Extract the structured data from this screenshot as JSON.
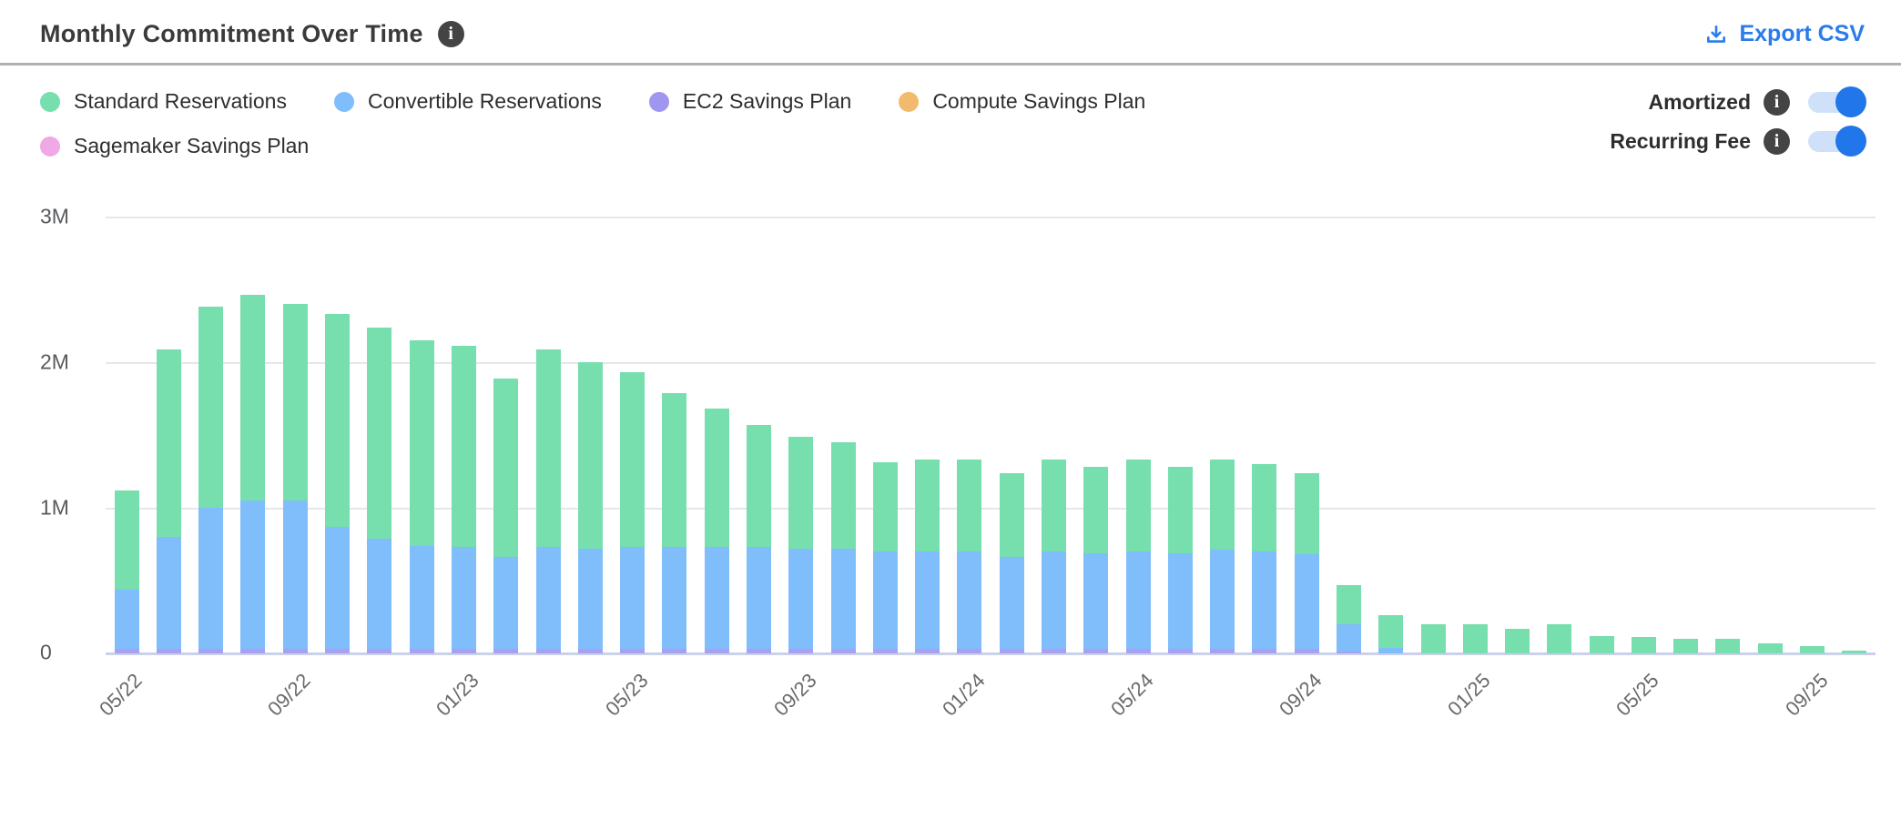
{
  "header": {
    "title": "Monthly Commitment Over Time",
    "title_info_icon": "info-icon",
    "export_label": "Export CSV",
    "export_color": "#2b7cea"
  },
  "legend": {
    "items": [
      {
        "label": "Standard Reservations",
        "color": "#77deae"
      },
      {
        "label": "Convertible Reservations",
        "color": "#7fbefb"
      },
      {
        "label": "EC2 Savings Plan",
        "color": "#a096f0"
      },
      {
        "label": "Compute Savings Plan",
        "color": "#f2ba6c"
      },
      {
        "label": "Sagemaker Savings Plan",
        "color": "#efa9e6"
      }
    ]
  },
  "toggles": [
    {
      "label": "Amortized",
      "state": "on"
    },
    {
      "label": "Recurring Fee",
      "state": "on"
    }
  ],
  "toggle_colors": {
    "track": "#cfe1f9",
    "knob": "#2176e9"
  },
  "chart_data": {
    "type": "bar",
    "stacked": true,
    "value_unit": "millions",
    "ylim": [
      0,
      3000000
    ],
    "grid": true,
    "ytick_labels": [
      "3M",
      "2M",
      "1M",
      "0"
    ],
    "x": [
      "05/22",
      "06/22",
      "07/22",
      "08/22",
      "09/22",
      "10/22",
      "11/22",
      "12/22",
      "01/23",
      "02/23",
      "03/23",
      "04/23",
      "05/23",
      "06/23",
      "07/23",
      "08/23",
      "09/23",
      "10/23",
      "11/23",
      "12/23",
      "01/24",
      "02/24",
      "03/24",
      "04/24",
      "05/24",
      "06/24",
      "07/24",
      "08/24",
      "09/24",
      "10/24",
      "11/24",
      "12/24",
      "01/25",
      "02/25",
      "03/25",
      "04/25",
      "05/25",
      "06/25",
      "07/25",
      "08/25",
      "09/25",
      "10/25"
    ],
    "xtick_every": 4,
    "stack_order_bottom_to_top": [
      4,
      3,
      2,
      1,
      0
    ],
    "series": [
      {
        "name": "Standard Reservations",
        "color": "#77deae",
        "values": [
          0.68,
          1.29,
          1.38,
          1.41,
          1.35,
          1.46,
          1.45,
          1.41,
          1.38,
          1.23,
          1.36,
          1.28,
          1.2,
          1.06,
          0.95,
          0.84,
          0.77,
          0.73,
          0.61,
          0.63,
          0.63,
          0.58,
          0.63,
          0.59,
          0.63,
          0.59,
          0.62,
          0.6,
          0.56,
          0.27,
          0.22,
          0.2,
          0.2,
          0.17,
          0.2,
          0.12,
          0.11,
          0.1,
          0.1,
          0.07,
          0.05,
          0.02
        ]
      },
      {
        "name": "Convertible Reservations",
        "color": "#7fbefb",
        "values": [
          0.41,
          0.77,
          0.97,
          1.02,
          1.02,
          0.84,
          0.76,
          0.71,
          0.7,
          0.63,
          0.7,
          0.69,
          0.7,
          0.7,
          0.7,
          0.7,
          0.69,
          0.69,
          0.67,
          0.67,
          0.67,
          0.63,
          0.67,
          0.66,
          0.67,
          0.66,
          0.68,
          0.67,
          0.65,
          0.19,
          0.04,
          0,
          0,
          0,
          0,
          0,
          0,
          0,
          0,
          0,
          0,
          0
        ]
      },
      {
        "name": "EC2 Savings Plan",
        "color": "#a9a0f4",
        "values": [
          0.03,
          0.03,
          0.03,
          0.03,
          0.03,
          0.03,
          0.03,
          0.03,
          0.03,
          0.03,
          0.03,
          0.03,
          0.03,
          0.03,
          0.03,
          0.03,
          0.03,
          0.03,
          0.03,
          0.03,
          0.03,
          0.03,
          0.03,
          0.03,
          0.03,
          0.03,
          0.03,
          0.03,
          0.03,
          0.01,
          0,
          0,
          0,
          0,
          0,
          0,
          0,
          0,
          0,
          0,
          0,
          0
        ]
      },
      {
        "name": "Compute Savings Plan",
        "color": "#f2ba6c",
        "values": [
          0,
          0,
          0,
          0,
          0,
          0,
          0,
          0,
          0,
          0,
          0,
          0,
          0,
          0,
          0,
          0,
          0,
          0,
          0,
          0,
          0,
          0,
          0,
          0,
          0,
          0,
          0,
          0,
          0,
          0,
          0,
          0,
          0,
          0,
          0,
          0,
          0,
          0,
          0,
          0,
          0,
          0
        ]
      },
      {
        "name": "Sagemaker Savings Plan",
        "color": "#efa9e6",
        "values": [
          0,
          0,
          0,
          0,
          0,
          0,
          0,
          0,
          0,
          0,
          0,
          0,
          0,
          0,
          0,
          0,
          0,
          0,
          0,
          0,
          0,
          0,
          0,
          0,
          0,
          0,
          0,
          0,
          0,
          0,
          0,
          0,
          0,
          0,
          0,
          0,
          0,
          0,
          0,
          0,
          0,
          0
        ]
      }
    ]
  }
}
